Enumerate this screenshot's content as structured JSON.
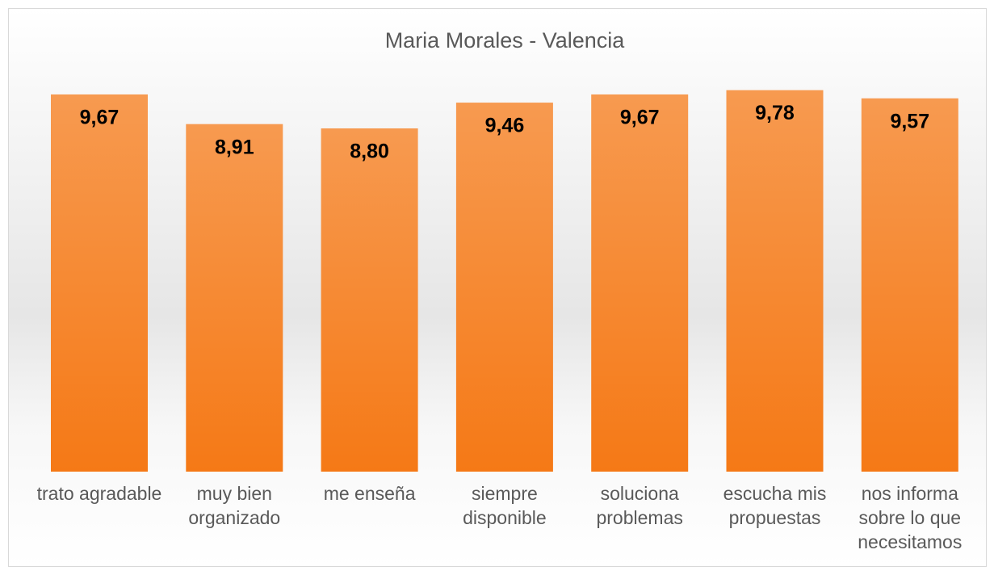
{
  "chart_data": {
    "type": "bar",
    "title": "Maria Morales - Valencia",
    "categories": [
      "trato agradable",
      "muy bien organizado",
      "me enseña",
      "siempre disponible",
      "soluciona problemas",
      "escucha mis propuestas",
      "nos informa sobre lo que necesitamos"
    ],
    "values": [
      9.67,
      8.91,
      8.8,
      9.46,
      9.67,
      9.78,
      9.57
    ],
    "value_labels": [
      "9,67",
      "8,91",
      "8,80",
      "9,46",
      "9,67",
      "9,78",
      "9,57"
    ],
    "color": "#f5801f"
  }
}
